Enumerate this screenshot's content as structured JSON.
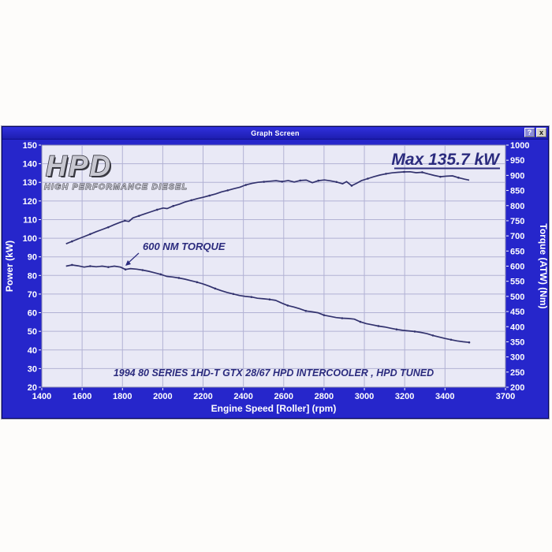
{
  "window": {
    "title": "Graph Screen",
    "help_label": "?",
    "close_label": "x"
  },
  "logo": {
    "title": "HPD",
    "subtitle": "HIGH PERFORMANCE DIESEL"
  },
  "chart_data": {
    "type": "line",
    "x_label": "Engine Speed [Roller] (rpm)",
    "y_left_label": "Power (kW)",
    "y_right_label": "Torque (ATW) (Nm)",
    "x_range": [
      1400,
      3700
    ],
    "x_ticks": [
      1400,
      1600,
      1800,
      2000,
      2200,
      2400,
      2600,
      2800,
      3000,
      3200,
      3400,
      3700
    ],
    "y_left_range": [
      20,
      150
    ],
    "y_left_ticks": [
      20,
      30,
      40,
      50,
      60,
      70,
      80,
      90,
      100,
      110,
      120,
      130,
      140,
      150
    ],
    "y_right_range": [
      200,
      1000
    ],
    "y_right_ticks": [
      200,
      250,
      300,
      350,
      400,
      450,
      500,
      550,
      600,
      650,
      700,
      750,
      800,
      850,
      900,
      950,
      1000
    ],
    "grid": true,
    "legend_position": "none",
    "annotations": {
      "max_power": "Max 135.7 kW",
      "torque_callout": "600 NM TORQUE",
      "caption": "1994 80 SERIES 1HD-T GTX 28/67 HPD INTERCOOLER , HPD TUNED"
    },
    "colors": {
      "window_blue": "#2626cb",
      "plot_bg": "#e9e9f6",
      "grid": "#b2b2d4",
      "plot_border": "#8888b0",
      "curve": "#32326e",
      "annotation": "#2b2b7e",
      "tick_text": "#ffffff"
    },
    "series": [
      {
        "name": "Power (kW)",
        "axis": "left",
        "points": [
          [
            1520,
            97.0
          ],
          [
            1550,
            98.3
          ],
          [
            1580,
            99.6
          ],
          [
            1610,
            100.9
          ],
          [
            1640,
            102.2
          ],
          [
            1670,
            103.5
          ],
          [
            1700,
            104.7
          ],
          [
            1730,
            105.9
          ],
          [
            1760,
            107.3
          ],
          [
            1790,
            108.6
          ],
          [
            1812,
            109.4
          ],
          [
            1832,
            109.0
          ],
          [
            1852,
            110.9
          ],
          [
            1882,
            112.0
          ],
          [
            1912,
            113.1
          ],
          [
            1942,
            114.2
          ],
          [
            1972,
            115.3
          ],
          [
            2002,
            116.2
          ],
          [
            2022,
            115.9
          ],
          [
            2052,
            117.3
          ],
          [
            2082,
            118.3
          ],
          [
            2112,
            119.5
          ],
          [
            2142,
            120.4
          ],
          [
            2172,
            121.3
          ],
          [
            2202,
            122.0
          ],
          [
            2232,
            122.9
          ],
          [
            2262,
            123.8
          ],
          [
            2292,
            124.9
          ],
          [
            2322,
            125.7
          ],
          [
            2352,
            126.6
          ],
          [
            2382,
            127.4
          ],
          [
            2412,
            128.6
          ],
          [
            2442,
            129.4
          ],
          [
            2472,
            130.0
          ],
          [
            2502,
            130.3
          ],
          [
            2532,
            130.6
          ],
          [
            2562,
            130.9
          ],
          [
            2592,
            130.4
          ],
          [
            2622,
            131.0
          ],
          [
            2652,
            130.2
          ],
          [
            2682,
            131.0
          ],
          [
            2712,
            131.2
          ],
          [
            2742,
            129.8
          ],
          [
            2772,
            130.9
          ],
          [
            2802,
            131.3
          ],
          [
            2832,
            130.8
          ],
          [
            2862,
            130.2
          ],
          [
            2892,
            129.2
          ],
          [
            2912,
            130.4
          ],
          [
            2937,
            128.2
          ],
          [
            2962,
            129.5
          ],
          [
            2987,
            131.0
          ],
          [
            3017,
            132.0
          ],
          [
            3047,
            133.0
          ],
          [
            3077,
            133.9
          ],
          [
            3107,
            134.6
          ],
          [
            3137,
            135.1
          ],
          [
            3167,
            135.4
          ],
          [
            3197,
            135.6
          ],
          [
            3227,
            135.7
          ],
          [
            3257,
            135.2
          ],
          [
            3287,
            135.4
          ],
          [
            3317,
            134.5
          ],
          [
            3347,
            133.7
          ],
          [
            3377,
            133.0
          ],
          [
            3407,
            133.3
          ],
          [
            3437,
            133.5
          ],
          [
            3467,
            132.5
          ],
          [
            3497,
            131.7
          ],
          [
            3520,
            131.2
          ]
        ]
      },
      {
        "name": "Torque (Nm)",
        "axis": "right",
        "points": [
          [
            1520,
            600
          ],
          [
            1550,
            604
          ],
          [
            1580,
            601
          ],
          [
            1610,
            597
          ],
          [
            1640,
            600
          ],
          [
            1670,
            598
          ],
          [
            1700,
            600
          ],
          [
            1730,
            597
          ],
          [
            1760,
            600
          ],
          [
            1790,
            597
          ],
          [
            1815,
            589
          ],
          [
            1840,
            592
          ],
          [
            1870,
            590
          ],
          [
            1900,
            587
          ],
          [
            1930,
            583
          ],
          [
            1960,
            578
          ],
          [
            1990,
            573
          ],
          [
            2020,
            566
          ],
          [
            2050,
            564
          ],
          [
            2080,
            561
          ],
          [
            2110,
            557
          ],
          [
            2140,
            552
          ],
          [
            2170,
            547
          ],
          [
            2200,
            541
          ],
          [
            2230,
            534
          ],
          [
            2260,
            526
          ],
          [
            2290,
            519
          ],
          [
            2320,
            513
          ],
          [
            2350,
            508
          ],
          [
            2380,
            503
          ],
          [
            2410,
            500
          ],
          [
            2440,
            498
          ],
          [
            2470,
            494
          ],
          [
            2500,
            492
          ],
          [
            2530,
            490
          ],
          [
            2560,
            487
          ],
          [
            2590,
            478
          ],
          [
            2620,
            470
          ],
          [
            2650,
            465
          ],
          [
            2680,
            459
          ],
          [
            2710,
            452
          ],
          [
            2740,
            449
          ],
          [
            2770,
            446
          ],
          [
            2800,
            438
          ],
          [
            2830,
            434
          ],
          [
            2860,
            430
          ],
          [
            2890,
            428
          ],
          [
            2920,
            427
          ],
          [
            2950,
            425
          ],
          [
            2980,
            416
          ],
          [
            3010,
            410
          ],
          [
            3040,
            406
          ],
          [
            3070,
            402
          ],
          [
            3100,
            399
          ],
          [
            3130,
            395
          ],
          [
            3160,
            391
          ],
          [
            3190,
            388
          ],
          [
            3220,
            386
          ],
          [
            3250,
            384
          ],
          [
            3280,
            381
          ],
          [
            3310,
            377
          ],
          [
            3340,
            371
          ],
          [
            3370,
            366
          ],
          [
            3400,
            361
          ],
          [
            3430,
            357
          ],
          [
            3460,
            353
          ],
          [
            3490,
            350
          ],
          [
            3520,
            348
          ]
        ]
      }
    ]
  }
}
